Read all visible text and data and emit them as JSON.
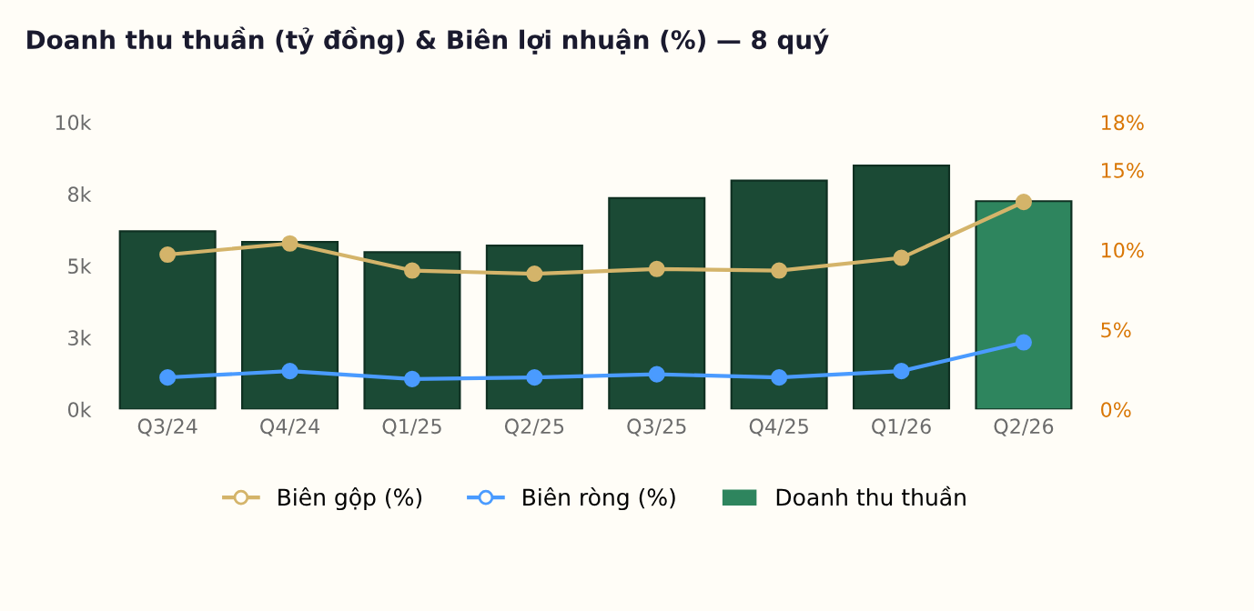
{
  "chart_data": {
    "type": "bar",
    "title": "Doanh thu thuần (tỷ đồng) & Biên lợi nhuận (%) — 8 quý",
    "categories": [
      "Q3/24",
      "Q4/24",
      "Q1/25",
      "Q2/25",
      "Q3/25",
      "Q4/25",
      "Q1/26",
      "Q2/26"
    ],
    "series": [
      {
        "name": "Doanh thu thuần",
        "colors": [
          "#1b4a35",
          "#1b4a35",
          "#1b4a35",
          "#1b4a35",
          "#1b4a35",
          "#1b4a35",
          "#1b4a35",
          "#2e855e"
        ],
        "values": [
          6200,
          5830,
          5470,
          5700,
          7360,
          7970,
          8490,
          7250
        ]
      },
      {
        "name": "Biên gộp (%)",
        "type": "line",
        "axis": "y2",
        "color": "#d4b46a",
        "values": [
          9.7,
          10.4,
          8.7,
          8.5,
          8.8,
          8.7,
          9.5,
          13.0
        ]
      },
      {
        "name": "Biên ròng (%)",
        "type": "line",
        "axis": "y2",
        "color": "#4a9bff",
        "values": [
          2.0,
          2.4,
          1.9,
          2.0,
          2.2,
          2.0,
          2.4,
          4.2
        ]
      }
    ],
    "ylim": [
      0,
      10000
    ],
    "yticks": [
      {
        "value": 0,
        "label": "0k"
      },
      {
        "value": 2500,
        "label": "3k"
      },
      {
        "value": 5000,
        "label": "5k"
      },
      {
        "value": 7500,
        "label": "8k"
      },
      {
        "value": 10000,
        "label": "10k"
      }
    ],
    "y2lim": [
      0,
      18
    ],
    "y2ticks": [
      {
        "value": 0,
        "label": "0%"
      },
      {
        "value": 5,
        "label": "5%"
      },
      {
        "value": 10,
        "label": "10%"
      },
      {
        "value": 15,
        "label": "15%"
      },
      {
        "value": 18,
        "label": "18%"
      }
    ],
    "marker": "circle",
    "line_style": "solid",
    "grid": false,
    "legend": "bottom"
  }
}
